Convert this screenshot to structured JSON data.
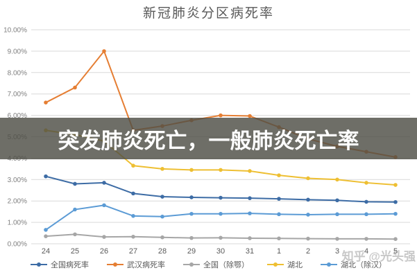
{
  "banner": {
    "text": "突发肺炎死亡，一般肺炎死亡率"
  },
  "watermark": "知乎 @光头强",
  "chart_data": {
    "type": "line",
    "title": "新冠肺炎分区病死率",
    "categories": [
      "24",
      "25",
      "26",
      "27",
      "28",
      "29",
      "30",
      "31",
      "1",
      "2",
      "3",
      "4",
      "5"
    ],
    "y_ticks": [
      "10.00%",
      "9.00%",
      "8.00%",
      "7.00%",
      "6.00%",
      "5.00%",
      "4.00%",
      "3.00%",
      "2.00%",
      "1.00%",
      "0.00%"
    ],
    "ylim": [
      0,
      10
    ],
    "grid": true,
    "legend_position": "bottom",
    "axis_label_color": "#7f7f7f",
    "grid_color": "#d9d9d9",
    "series": [
      {
        "name": "全国病死率",
        "color": "#3D6CA5",
        "values": [
          3.15,
          2.8,
          2.85,
          2.35,
          2.2,
          2.17,
          2.15,
          2.13,
          2.1,
          2.06,
          2.03,
          1.96,
          1.95
        ]
      },
      {
        "name": "武汉病死率",
        "color": "#E57E33",
        "values": [
          6.6,
          7.3,
          9.0,
          5.3,
          5.5,
          5.77,
          6.0,
          5.97,
          5.45,
          4.9,
          4.55,
          4.3,
          4.05
        ]
      },
      {
        "name": "全国（除鄂）",
        "color": "#A6A6A6",
        "values": [
          0.35,
          0.44,
          0.32,
          0.33,
          0.3,
          0.27,
          0.28,
          0.26,
          0.25,
          0.24,
          0.23,
          0.23,
          0.22
        ]
      },
      {
        "name": "湖北",
        "color": "#EEBF32",
        "values": [
          5.3,
          5.1,
          4.8,
          3.65,
          3.5,
          3.45,
          3.45,
          3.4,
          3.2,
          3.06,
          3.0,
          2.85,
          2.75
        ]
      },
      {
        "name": "湖北（除汉）",
        "color": "#5B9BD5",
        "values": [
          0.65,
          1.6,
          1.8,
          1.3,
          1.27,
          1.4,
          1.4,
          1.42,
          1.38,
          1.36,
          1.38,
          1.38,
          1.4
        ]
      }
    ]
  }
}
